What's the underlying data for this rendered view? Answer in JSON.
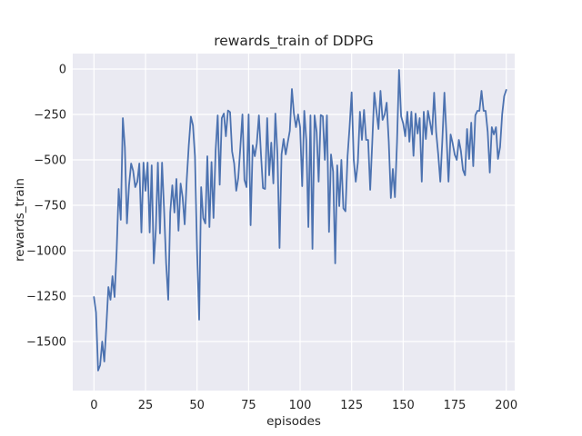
{
  "figure": {
    "title": "rewards_train of DDPG",
    "xlabel": "episodes",
    "ylabel": "rewards_train"
  },
  "chart_data": {
    "type": "line",
    "title": "rewards_train of DDPG",
    "xlabel": "episodes",
    "ylabel": "rewards_train",
    "legend": false,
    "grid": true,
    "style": "seaborn-darkgrid",
    "background_color": "#EAEAF2",
    "grid_color": "#FFFFFF",
    "text_color": "#262626",
    "line_color": "#4C72B0",
    "line_width": 1.8,
    "xlim": [
      -10.3,
      204.1
    ],
    "ylim": [
      -1770,
      85
    ],
    "x_ticks": [
      0,
      25,
      50,
      75,
      100,
      125,
      150,
      175,
      200
    ],
    "y_ticks": [
      0,
      -250,
      -500,
      -750,
      -1000,
      -1250,
      -1500
    ],
    "series": [
      {
        "name": "rewards_train",
        "x_start": 0,
        "x_step": 1,
        "values": [
          -1255,
          -1340,
          -1660,
          -1630,
          -1500,
          -1610,
          -1420,
          -1200,
          -1270,
          -1140,
          -1255,
          -1000,
          -660,
          -830,
          -270,
          -430,
          -850,
          -640,
          -520,
          -560,
          -650,
          -620,
          -520,
          -900,
          -515,
          -670,
          -515,
          -900,
          -530,
          -1070,
          -880,
          -515,
          -905,
          -515,
          -770,
          -1070,
          -1270,
          -790,
          -640,
          -790,
          -605,
          -890,
          -630,
          -705,
          -855,
          -605,
          -420,
          -262,
          -310,
          -480,
          -1000,
          -1380,
          -650,
          -820,
          -850,
          -480,
          -870,
          -512,
          -820,
          -450,
          -255,
          -637,
          -270,
          -245,
          -370,
          -228,
          -237,
          -453,
          -520,
          -670,
          -600,
          -430,
          -250,
          -610,
          -650,
          -250,
          -860,
          -420,
          -480,
          -410,
          -255,
          -470,
          -655,
          -660,
          -270,
          -585,
          -405,
          -630,
          -245,
          -470,
          -985,
          -470,
          -385,
          -470,
          -405,
          -340,
          -110,
          -245,
          -320,
          -250,
          -320,
          -645,
          -230,
          -390,
          -870,
          -255,
          -990,
          -255,
          -347,
          -620,
          -253,
          -260,
          -500,
          -255,
          -897,
          -470,
          -565,
          -1070,
          -530,
          -755,
          -500,
          -767,
          -783,
          -480,
          -320,
          -128,
          -500,
          -620,
          -515,
          -235,
          -390,
          -225,
          -390,
          -390,
          -665,
          -400,
          -130,
          -230,
          -330,
          -120,
          -280,
          -250,
          -185,
          -400,
          -710,
          -550,
          -705,
          -400,
          -5,
          -260,
          -300,
          -370,
          -235,
          -400,
          -235,
          -478,
          -245,
          -355,
          -270,
          -620,
          -235,
          -385,
          -230,
          -290,
          -360,
          -130,
          -345,
          -470,
          -620,
          -395,
          -130,
          -370,
          -620,
          -360,
          -410,
          -470,
          -500,
          -390,
          -450,
          -555,
          -585,
          -330,
          -495,
          -295,
          -535,
          -255,
          -230,
          -230,
          -120,
          -230,
          -230,
          -345,
          -570,
          -320,
          -360,
          -320,
          -495,
          -430,
          -250,
          -150,
          -115
        ]
      }
    ]
  },
  "layout_note": "single matplotlib-style line chart"
}
